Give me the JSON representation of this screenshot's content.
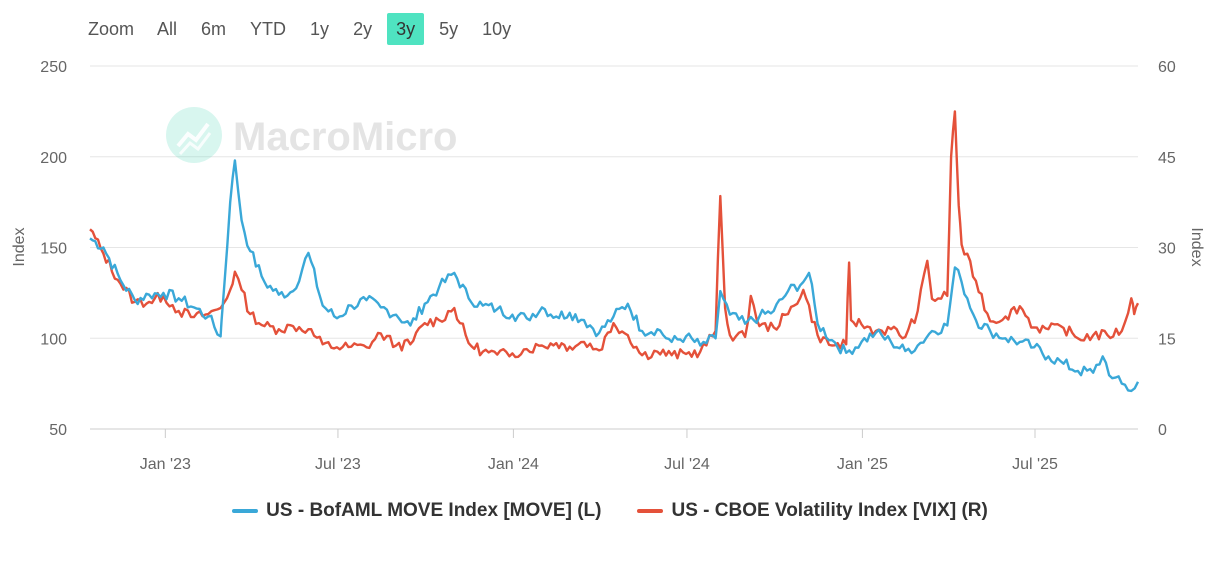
{
  "range_selector": {
    "label": "Zoom",
    "buttons": [
      "All",
      "6m",
      "YTD",
      "1y",
      "2y",
      "3y",
      "5y",
      "10y"
    ],
    "active": "3y"
  },
  "watermark": {
    "text": "MacroMicro"
  },
  "colors": {
    "move": "#3aa8d8",
    "vix": "#e4513a",
    "grid": "#e6e6e6",
    "axis": "#cccccc",
    "watermark": "#4fd8b8"
  },
  "chart_data": {
    "type": "line",
    "title": "",
    "x_tick_labels": [
      "Jan '23",
      "Jul '23",
      "Jan '24",
      "Jul '24",
      "Jan '25",
      "Jul '25"
    ],
    "x_range": [
      "2022-10-14",
      "2025-10-17"
    ],
    "y_left": {
      "label": "Index",
      "min": 50,
      "max": 250,
      "ticks": [
        50,
        100,
        150,
        200,
        250
      ]
    },
    "y_right": {
      "label": "Index",
      "min": 0,
      "max": 60,
      "ticks": [
        0,
        15,
        30,
        45,
        60
      ]
    },
    "series": [
      {
        "name": "US - BofAML MOVE Index [MOVE] (L)",
        "axis": "left",
        "points": [
          [
            "2022-10-14",
            155
          ],
          [
            "2022-10-28",
            150
          ],
          [
            "2022-11-15",
            132
          ],
          [
            "2022-11-30",
            121
          ],
          [
            "2022-12-15",
            124
          ],
          [
            "2022-12-30",
            125
          ],
          [
            "2023-01-15",
            122
          ],
          [
            "2023-01-31",
            117
          ],
          [
            "2023-02-15",
            112
          ],
          [
            "2023-02-28",
            101
          ],
          [
            "2023-03-01",
            110
          ],
          [
            "2023-03-10",
            175
          ],
          [
            "2023-03-15",
            198
          ],
          [
            "2023-03-22",
            165
          ],
          [
            "2023-03-31",
            148
          ],
          [
            "2023-04-15",
            131
          ],
          [
            "2023-04-30",
            124
          ],
          [
            "2023-05-15",
            126
          ],
          [
            "2023-05-31",
            147
          ],
          [
            "2023-06-15",
            118
          ],
          [
            "2023-06-30",
            111
          ],
          [
            "2023-07-15",
            118
          ],
          [
            "2023-07-31",
            121
          ],
          [
            "2023-08-15",
            117
          ],
          [
            "2023-08-31",
            113
          ],
          [
            "2023-09-15",
            107
          ],
          [
            "2023-09-30",
            119
          ],
          [
            "2023-10-15",
            128
          ],
          [
            "2023-10-31",
            136
          ],
          [
            "2023-11-15",
            122
          ],
          [
            "2023-11-30",
            118
          ],
          [
            "2023-12-15",
            116
          ],
          [
            "2023-12-31",
            113
          ],
          [
            "2024-01-15",
            111
          ],
          [
            "2024-01-31",
            117
          ],
          [
            "2024-02-15",
            112
          ],
          [
            "2024-02-29",
            114
          ],
          [
            "2024-03-15",
            110
          ],
          [
            "2024-03-31",
            103
          ],
          [
            "2024-04-15",
            112
          ],
          [
            "2024-04-30",
            119
          ],
          [
            "2024-05-15",
            104
          ],
          [
            "2024-05-31",
            105
          ],
          [
            "2024-06-15",
            98
          ],
          [
            "2024-06-30",
            101
          ],
          [
            "2024-07-15",
            96
          ],
          [
            "2024-07-31",
            100
          ],
          [
            "2024-08-05",
            126
          ],
          [
            "2024-08-15",
            113
          ],
          [
            "2024-08-31",
            108
          ],
          [
            "2024-09-15",
            112
          ],
          [
            "2024-09-30",
            115
          ],
          [
            "2024-10-15",
            126
          ],
          [
            "2024-10-31",
            131
          ],
          [
            "2024-11-06",
            136
          ],
          [
            "2024-11-15",
            108
          ],
          [
            "2024-11-30",
            99
          ],
          [
            "2024-12-15",
            92
          ],
          [
            "2024-12-31",
            98
          ],
          [
            "2025-01-15",
            103
          ],
          [
            "2025-01-31",
            98
          ],
          [
            "2025-02-15",
            93
          ],
          [
            "2025-02-28",
            96
          ],
          [
            "2025-03-15",
            104
          ],
          [
            "2025-03-31",
            107
          ],
          [
            "2025-04-08",
            139
          ],
          [
            "2025-04-15",
            131
          ],
          [
            "2025-04-30",
            110
          ],
          [
            "2025-05-15",
            104
          ],
          [
            "2025-05-31",
            100
          ],
          [
            "2025-06-15",
            98
          ],
          [
            "2025-06-30",
            95
          ],
          [
            "2025-07-15",
            90
          ],
          [
            "2025-07-31",
            86
          ],
          [
            "2025-08-15",
            82
          ],
          [
            "2025-08-31",
            81
          ],
          [
            "2025-09-10",
            90
          ],
          [
            "2025-09-20",
            78
          ],
          [
            "2025-09-30",
            75
          ],
          [
            "2025-10-10",
            71
          ],
          [
            "2025-10-17",
            76
          ]
        ]
      },
      {
        "name": "US - CBOE Volatility Index [VIX] (R)",
        "axis": "right",
        "points": [
          [
            "2022-10-14",
            33
          ],
          [
            "2022-10-28",
            29
          ],
          [
            "2022-11-15",
            24
          ],
          [
            "2022-11-30",
            21
          ],
          [
            "2022-12-15",
            21
          ],
          [
            "2022-12-30",
            22
          ],
          [
            "2023-01-15",
            19.5
          ],
          [
            "2023-01-31",
            18.5
          ],
          [
            "2023-02-15",
            19
          ],
          [
            "2023-02-28",
            20
          ],
          [
            "2023-03-10",
            23
          ],
          [
            "2023-03-15",
            26
          ],
          [
            "2023-03-22",
            23
          ],
          [
            "2023-03-31",
            19
          ],
          [
            "2023-04-15",
            17
          ],
          [
            "2023-04-30",
            16.5
          ],
          [
            "2023-05-15",
            17
          ],
          [
            "2023-05-31",
            16.5
          ],
          [
            "2023-06-15",
            14
          ],
          [
            "2023-06-30",
            13.5
          ],
          [
            "2023-07-15",
            13.6
          ],
          [
            "2023-07-31",
            13.5
          ],
          [
            "2023-08-15",
            15.8
          ],
          [
            "2023-08-31",
            13.8
          ],
          [
            "2023-09-15",
            14
          ],
          [
            "2023-09-30",
            17.5
          ],
          [
            "2023-10-15",
            18
          ],
          [
            "2023-10-31",
            20
          ],
          [
            "2023-11-15",
            14.2
          ],
          [
            "2023-11-30",
            12.8
          ],
          [
            "2023-12-15",
            12.3
          ],
          [
            "2023-12-31",
            12.5
          ],
          [
            "2024-01-15",
            13.2
          ],
          [
            "2024-01-31",
            13.8
          ],
          [
            "2024-02-15",
            14.2
          ],
          [
            "2024-02-29",
            13.6
          ],
          [
            "2024-03-15",
            14.4
          ],
          [
            "2024-03-31",
            13
          ],
          [
            "2024-04-15",
            17.5
          ],
          [
            "2024-04-30",
            15.5
          ],
          [
            "2024-05-15",
            12.2
          ],
          [
            "2024-05-31",
            12.8
          ],
          [
            "2024-06-15",
            12.2
          ],
          [
            "2024-06-30",
            12.4
          ],
          [
            "2024-07-15",
            12.8
          ],
          [
            "2024-07-31",
            16.2
          ],
          [
            "2024-08-05",
            38.5
          ],
          [
            "2024-08-10",
            20
          ],
          [
            "2024-08-15",
            15.5
          ],
          [
            "2024-08-31",
            15.2
          ],
          [
            "2024-09-06",
            22
          ],
          [
            "2024-09-15",
            17
          ],
          [
            "2024-09-30",
            16.8
          ],
          [
            "2024-10-15",
            19
          ],
          [
            "2024-10-31",
            23
          ],
          [
            "2024-11-15",
            15.5
          ],
          [
            "2024-11-30",
            13.8
          ],
          [
            "2024-12-15",
            14
          ],
          [
            "2024-12-18",
            27.5
          ],
          [
            "2024-12-20",
            18
          ],
          [
            "2024-12-31",
            17.3
          ],
          [
            "2025-01-15",
            16.2
          ],
          [
            "2025-01-31",
            16.5
          ],
          [
            "2025-02-15",
            15.2
          ],
          [
            "2025-02-28",
            19.5
          ],
          [
            "2025-03-10",
            27.8
          ],
          [
            "2025-03-15",
            21.5
          ],
          [
            "2025-03-31",
            22
          ],
          [
            "2025-04-04",
            45
          ],
          [
            "2025-04-08",
            52.5
          ],
          [
            "2025-04-12",
            37
          ],
          [
            "2025-04-15",
            30.5
          ],
          [
            "2025-04-30",
            24.5
          ],
          [
            "2025-05-15",
            17.8
          ],
          [
            "2025-05-31",
            18.6
          ],
          [
            "2025-06-15",
            20.3
          ],
          [
            "2025-06-30",
            16.8
          ],
          [
            "2025-07-15",
            16.5
          ],
          [
            "2025-07-31",
            16.7
          ],
          [
            "2025-08-15",
            15
          ],
          [
            "2025-08-31",
            15.5
          ],
          [
            "2025-09-15",
            15.5
          ],
          [
            "2025-09-30",
            16.2
          ],
          [
            "2025-10-10",
            21.6
          ],
          [
            "2025-10-13",
            19
          ],
          [
            "2025-10-17",
            20.8
          ]
        ]
      }
    ]
  },
  "legend": [
    {
      "label": "US - BofAML MOVE Index [MOVE] (L)",
      "color_key": "move"
    },
    {
      "label": "US - CBOE Volatility Index [VIX] (R)",
      "color_key": "vix"
    }
  ]
}
